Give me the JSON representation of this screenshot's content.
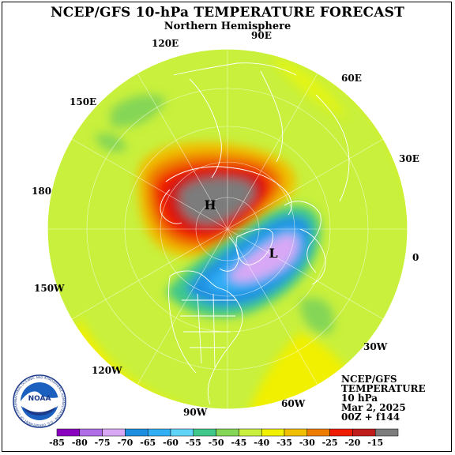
{
  "title": "NCEP/GFS 10-hPa TEMPERATURE FORECAST",
  "subtitle": "Northern Hemisphere",
  "longitude_labels": [
    {
      "key": "90E",
      "text": "90E"
    },
    {
      "key": "120E",
      "text": "120E"
    },
    {
      "key": "60E",
      "text": "60E"
    },
    {
      "key": "150E",
      "text": "150E"
    },
    {
      "key": "30E",
      "text": "30E"
    },
    {
      "key": "180",
      "text": "180"
    },
    {
      "key": "0",
      "text": "0"
    },
    {
      "key": "150W",
      "text": "150W"
    },
    {
      "key": "30W",
      "text": "30W"
    },
    {
      "key": "120W",
      "text": "120W"
    },
    {
      "key": "60W",
      "text": "60W"
    },
    {
      "key": "90W",
      "text": "90W"
    }
  ],
  "markers": {
    "high": "H",
    "low": "L"
  },
  "info": {
    "line1": "NCEP/GFS",
    "line2": "TEMPERATURE",
    "line3": "10 hPa",
    "line4": "Mar 2, 2025",
    "line5": "00Z + f144"
  },
  "logo_text": "NOAA",
  "logo_ring_text": "NATIONAL OCEANIC AND ATMOSPHERIC ADMINISTRATION · U.S. DEPARTMENT OF COMMERCE",
  "colorbar": {
    "labels": [
      "-85",
      "-80",
      "-75",
      "-70",
      "-65",
      "-60",
      "-55",
      "-50",
      "-45",
      "-40",
      "-35",
      "-30",
      "-25",
      "-20",
      "-15"
    ],
    "colors": [
      "#8a00bf",
      "#b06ee6",
      "#d8a8f5",
      "#1e8fe0",
      "#32aef5",
      "#5fd4f7",
      "#40c88a",
      "#84d656",
      "#c8f03c",
      "#f0f000",
      "#f0c000",
      "#ee7c00",
      "#ee1c00",
      "#bf1c1c",
      "#7c7c7c"
    ]
  }
}
